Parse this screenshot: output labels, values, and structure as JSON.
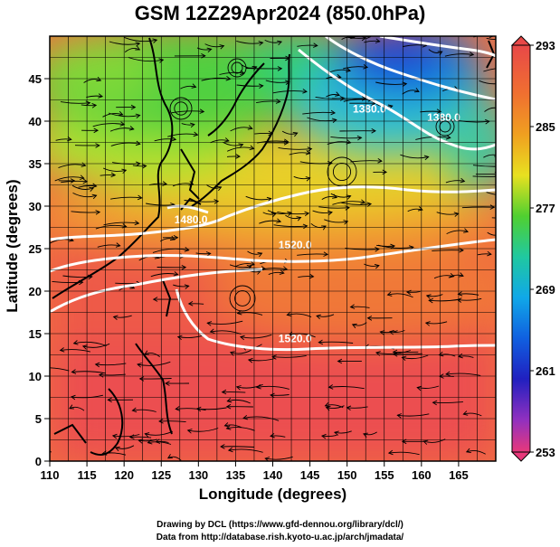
{
  "title": "GSM 12Z29Apr2024 (850.0hPa)",
  "xlabel": "Longitude (degrees)",
  "ylabel": "Latitude  (degrees)",
  "credit_line1": "Drawing by DCL (https://www.gfd-dennou.org/library/dcl/)",
  "credit_line2": "Data from http://database.rish.kyoto-u.ac.jp/arch/jmadata/",
  "chart_data": {
    "type": "heatmap",
    "title": "GSM 12Z29Apr2024 (850.0hPa)",
    "xlabel": "Longitude (degrees)",
    "ylabel": "Latitude  (degrees)",
    "xlim": [
      110,
      170
    ],
    "ylim": [
      0,
      50
    ],
    "x_ticks": [
      110,
      115,
      120,
      125,
      130,
      135,
      140,
      145,
      150,
      155,
      160,
      165
    ],
    "y_ticks": [
      0,
      5,
      10,
      15,
      20,
      25,
      30,
      35,
      40,
      45
    ],
    "grid": true,
    "colorbar": {
      "min": 253,
      "max": 293,
      "labels": [
        "293",
        "285",
        "277",
        "269",
        "261",
        "253"
      ],
      "label_values": [
        293,
        285,
        277,
        269,
        261,
        253
      ],
      "colors": [
        "#e8387a",
        "#c040c8",
        "#3030d0",
        "#1070e8",
        "#10b4e8",
        "#20d0a0",
        "#40d040",
        "#90e030",
        "#e8e020",
        "#f0a020",
        "#f06030",
        "#e84848"
      ]
    },
    "contour_labels": [
      {
        "text": "1380.0",
        "lon": 153,
        "lat": 41
      },
      {
        "text": "1380.0",
        "lon": 163,
        "lat": 40
      },
      {
        "text": "1480.0",
        "lon": 129,
        "lat": 28
      },
      {
        "text": "1520.0",
        "lon": 143,
        "lat": 25
      },
      {
        "text": "1520.0",
        "lon": 143,
        "lat": 14
      }
    ]
  }
}
